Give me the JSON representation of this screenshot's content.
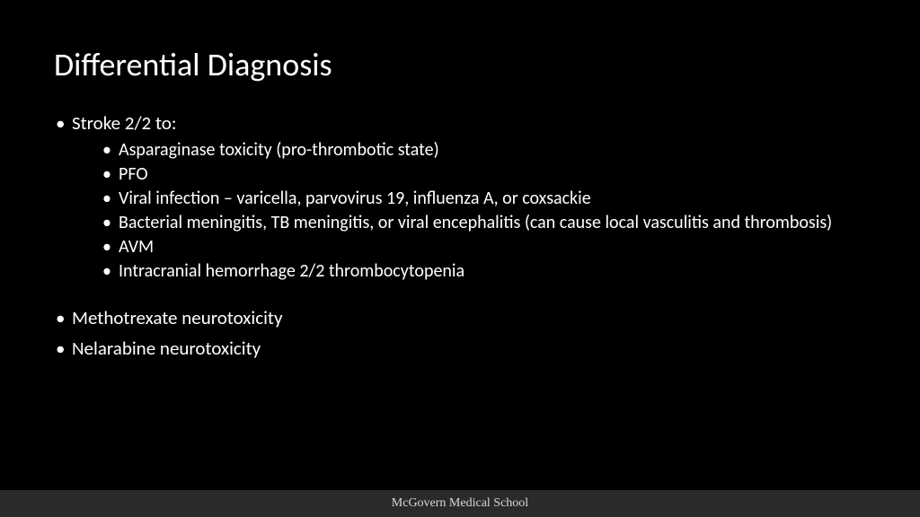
{
  "slide": {
    "title": "Differential Diagnosis",
    "bullets": {
      "b1": "Stroke 2/2 to:",
      "b1_sub": {
        "s1": "Asparaginase toxicity (pro-thrombotic state)",
        "s2": "PFO",
        "s3": "Viral infection – varicella, parvovirus 19, influenza A, or coxsackie",
        "s4": "Bacterial meningitis, TB meningitis, or viral encephalitis (can cause local vasculitis and thrombosis)",
        "s5": "AVM",
        "s6": "Intracranial hemorrhage 2/2 thrombocytopenia"
      },
      "b2": "Methotrexate neurotoxicity",
      "b3": "Nelarabine neurotoxicity"
    }
  },
  "footer": {
    "text": "McGovern Medical School"
  },
  "style": {
    "background_color": "#000000",
    "text_color": "#ffffff",
    "footer_bg": "#2a2a2a",
    "footer_text_color": "#d8d8d8",
    "title_fontsize": 36,
    "body_fontsize": 21,
    "sub_fontsize": 20,
    "footer_fontsize": 14,
    "slide_width": 1024,
    "slide_height": 576
  }
}
